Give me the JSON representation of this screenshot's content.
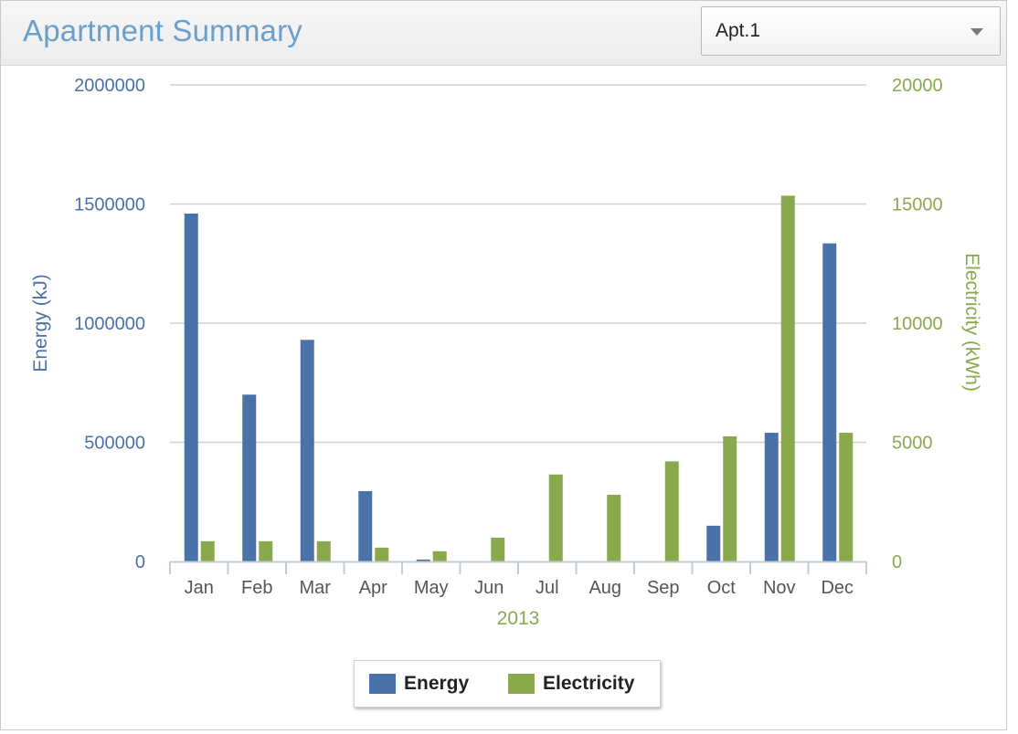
{
  "header": {
    "title": "Apartment Summary",
    "dropdown": {
      "selected": "Apt.1"
    }
  },
  "colors": {
    "energy": "#4a72a8",
    "electricity": "#8aa84c",
    "axis_left_text": "#4a72a8",
    "axis_right_text": "#8aa84c"
  },
  "chart_data": {
    "type": "bar",
    "categories": [
      "Jan",
      "Feb",
      "Mar",
      "Apr",
      "May",
      "Jun",
      "Jul",
      "Aug",
      "Sep",
      "Oct",
      "Nov",
      "Dec"
    ],
    "xlabel": "2013",
    "series": [
      {
        "name": "Energy",
        "axis": "left",
        "values": [
          1460000,
          700000,
          930000,
          295000,
          8000,
          0,
          0,
          0,
          0,
          150000,
          540000,
          1335000
        ]
      },
      {
        "name": "Electricity",
        "axis": "right",
        "values": [
          850,
          850,
          850,
          580,
          430,
          1000,
          3650,
          2800,
          4200,
          5250,
          15350,
          5400
        ]
      }
    ],
    "y_left": {
      "label": "Energy (kJ)",
      "range": [
        0,
        2000000
      ],
      "ticks": [
        "0",
        "500000",
        "1000000",
        "1500000",
        "2000000"
      ]
    },
    "y_right": {
      "label": "Electricity (kWh)",
      "range": [
        0,
        20000
      ],
      "ticks": [
        "0",
        "5000",
        "10000",
        "15000",
        "20000"
      ]
    },
    "grid": true,
    "legend": {
      "position": "bottom-center",
      "items": [
        "Energy",
        "Electricity"
      ]
    }
  }
}
